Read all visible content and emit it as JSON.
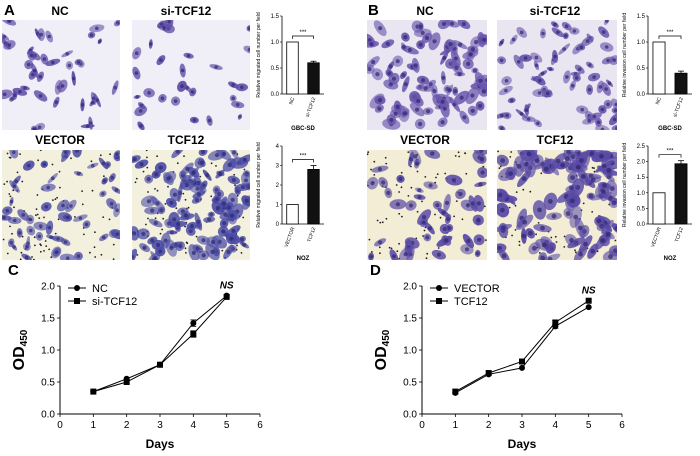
{
  "panels": {
    "A": {
      "letter": "A",
      "row1": {
        "left_label": "NC",
        "right_label": "si-TCF12"
      },
      "row2": {
        "left_label": "VECTOR",
        "right_label": "TCF12"
      }
    },
    "B": {
      "letter": "B",
      "row1": {
        "left_label": "NC",
        "right_label": "si-TCF12"
      },
      "row2": {
        "left_label": "VECTOR",
        "right_label": "TCF12"
      }
    },
    "C": {
      "letter": "C"
    },
    "D": {
      "letter": "D"
    }
  },
  "colors": {
    "cell_purple": "#5a4aa8",
    "bg_light": "#ece8f2",
    "bg_yellow": "#f4f0d6",
    "bar_black": "#111111"
  },
  "chart_data": [
    {
      "id": "A-top",
      "type": "bar",
      "categories": [
        "NC",
        "si-TCF12"
      ],
      "values": [
        1.0,
        0.6
      ],
      "errors": [
        0,
        0.03
      ],
      "ylabel": "Relative migrated cell number per field",
      "xlabel": "GBC-SD",
      "ylim": [
        0,
        1.5
      ],
      "yticks": [
        "0.0",
        "0.5",
        "1.0",
        "1.5"
      ],
      "significance": "***",
      "bar_fills": [
        "#ffffff",
        "#111111"
      ]
    },
    {
      "id": "A-bottom",
      "type": "bar",
      "categories": [
        "VECTOR",
        "TCF12"
      ],
      "values": [
        1.0,
        2.8
      ],
      "errors": [
        0,
        0.2
      ],
      "ylabel": "Relative migrated cell number per field",
      "xlabel": "NOZ",
      "ylim": [
        0,
        4
      ],
      "yticks": [
        "0",
        "1",
        "2",
        "3",
        "4"
      ],
      "significance": "***",
      "bar_fills": [
        "#ffffff",
        "#111111"
      ]
    },
    {
      "id": "B-top",
      "type": "bar",
      "categories": [
        "NC",
        "si-TCF12"
      ],
      "values": [
        1.0,
        0.4
      ],
      "errors": [
        0,
        0.04
      ],
      "ylabel": "Relative invasion cell number per field",
      "xlabel": "GBC-SD",
      "ylim": [
        0,
        1.5
      ],
      "yticks": [
        "0.0",
        "0.5",
        "1.0",
        "1.5"
      ],
      "significance": "***",
      "bar_fills": [
        "#ffffff",
        "#111111"
      ]
    },
    {
      "id": "B-bottom",
      "type": "bar",
      "categories": [
        "VECTOR",
        "TCF12"
      ],
      "values": [
        1.0,
        1.93
      ],
      "errors": [
        0,
        0.1
      ],
      "ylabel": "Relative invasion cell number per field",
      "xlabel": "NOZ",
      "ylim": [
        0,
        2.5
      ],
      "yticks": [
        "0.0",
        "0.5",
        "1.0",
        "1.5",
        "2.0",
        "2.5"
      ],
      "significance": "***",
      "bar_fills": [
        "#ffffff",
        "#111111"
      ]
    },
    {
      "id": "C",
      "type": "line",
      "x": [
        1,
        2,
        3,
        4,
        5
      ],
      "series": [
        {
          "name": "NC",
          "marker": "circle",
          "values": [
            0.35,
            0.55,
            0.77,
            1.42,
            1.85
          ],
          "errors": [
            0,
            0,
            0,
            0.05,
            0
          ]
        },
        {
          "name": "si-TCF12",
          "marker": "square",
          "values": [
            0.35,
            0.5,
            0.77,
            1.25,
            1.83
          ],
          "errors": [
            0,
            0,
            0,
            0.05,
            0
          ]
        }
      ],
      "xlabel": "Days",
      "ylabel": "OD",
      "ylabel_sub": "450",
      "xlim": [
        0,
        6
      ],
      "ylim": [
        0,
        2.0
      ],
      "xticks": [
        "0",
        "1",
        "2",
        "3",
        "4",
        "5",
        "6"
      ],
      "yticks": [
        "0.0",
        "0.5",
        "1.0",
        "1.5",
        "2.0"
      ],
      "annotation": "NS"
    },
    {
      "id": "D",
      "type": "line",
      "x": [
        1,
        2,
        3,
        4,
        5
      ],
      "series": [
        {
          "name": "VECTOR",
          "marker": "circle",
          "values": [
            0.33,
            0.62,
            0.72,
            1.37,
            1.67
          ],
          "errors": [
            0,
            0,
            0,
            0.03,
            0
          ]
        },
        {
          "name": "TCF12",
          "marker": "square",
          "values": [
            0.35,
            0.64,
            0.82,
            1.43,
            1.77
          ],
          "errors": [
            0,
            0,
            0,
            0.03,
            0
          ]
        }
      ],
      "xlabel": "Days",
      "ylabel": "OD",
      "ylabel_sub": "450",
      "xlim": [
        0,
        6
      ],
      "ylim": [
        0,
        2.0
      ],
      "xticks": [
        "0",
        "1",
        "2",
        "3",
        "4",
        "5",
        "6"
      ],
      "yticks": [
        "0.0",
        "0.5",
        "1.0",
        "1.5",
        "2.0"
      ],
      "annotation": "NS"
    }
  ]
}
